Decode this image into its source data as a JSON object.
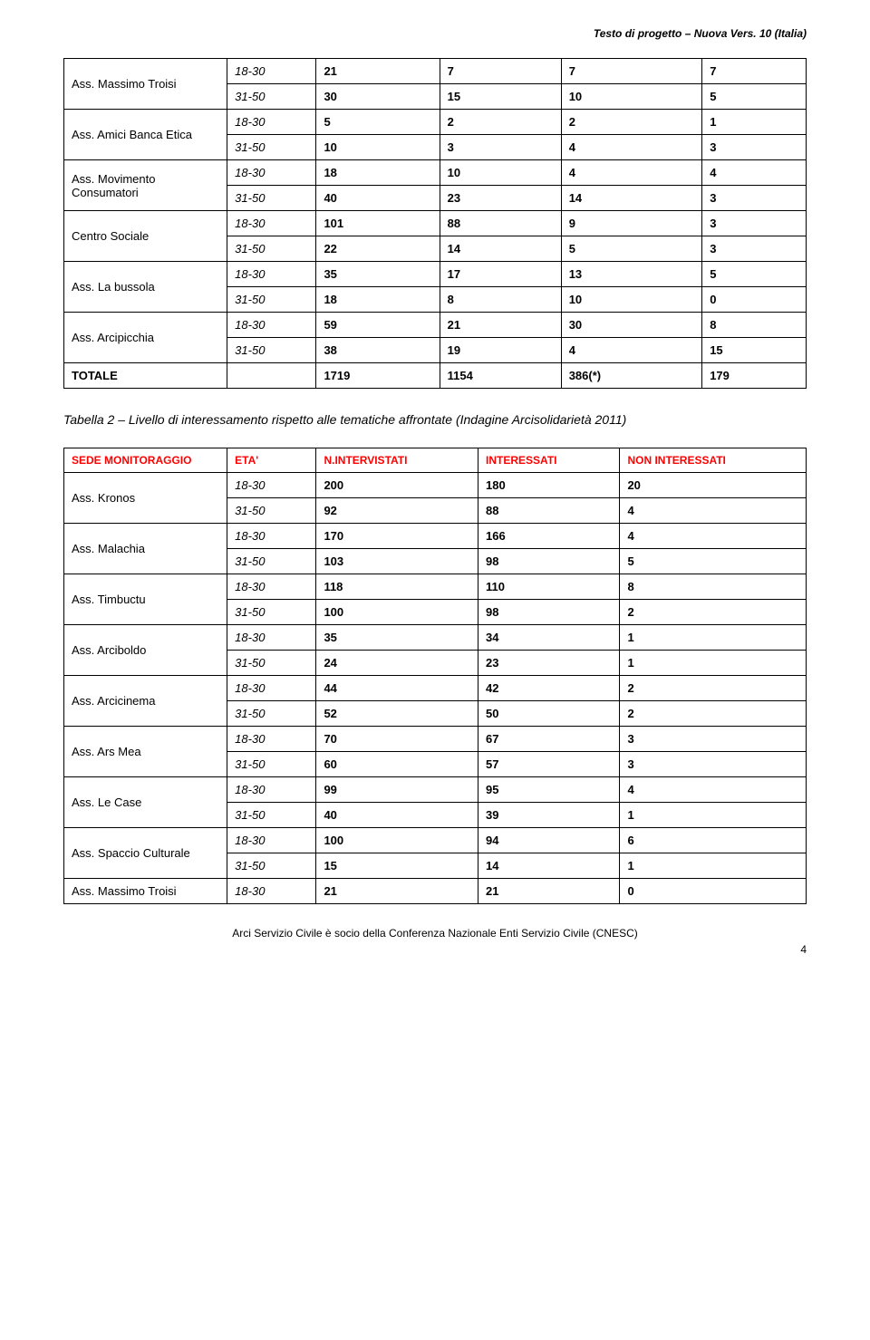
{
  "header": {
    "right": "Testo di progetto – Nuova Vers. 10 (Italia)"
  },
  "table1": {
    "rows": [
      {
        "label": "Ass. Massimo Troisi",
        "r1": [
          "18-30",
          "21",
          "7",
          "7",
          "7"
        ],
        "r2": [
          "31-50",
          "30",
          "15",
          "10",
          "5"
        ]
      },
      {
        "label": "Ass. Amici Banca Etica",
        "r1": [
          "18-30",
          "5",
          "2",
          "2",
          "1"
        ],
        "r2": [
          "31-50",
          "10",
          "3",
          "4",
          "3"
        ]
      },
      {
        "label": "Ass. Movimento Consumatori",
        "r1": [
          "18-30",
          "18",
          "10",
          "4",
          "4"
        ],
        "r2": [
          "31-50",
          "40",
          "23",
          "14",
          "3"
        ]
      },
      {
        "label": "Centro Sociale",
        "r1": [
          "18-30",
          "101",
          "88",
          "9",
          "3"
        ],
        "r2": [
          "31-50",
          "22",
          "14",
          "5",
          "3"
        ]
      },
      {
        "label": "Ass. La bussola",
        "r1": [
          "18-30",
          "35",
          "17",
          "13",
          "5"
        ],
        "r2": [
          "31-50",
          "18",
          "8",
          "10",
          "0"
        ]
      },
      {
        "label": "Ass. Arcipicchia",
        "r1": [
          "18-30",
          "59",
          "21",
          "30",
          "8"
        ],
        "r2": [
          "31-50",
          "38",
          "19",
          "4",
          "15"
        ]
      }
    ],
    "total": {
      "label": "TOTALE",
      "cells": [
        "",
        "1719",
        "1154",
        "386(*)",
        "179"
      ]
    }
  },
  "caption": "Tabella 2 – Livello di interessamento rispetto alle tematiche affrontate (Indagine Arcisolidarietà 2011)",
  "table2": {
    "headers": [
      "SEDE MONITORAGGIO",
      "ETA'",
      "N.INTERVISTATI",
      "INTERESSATI",
      "NON INTERESSATI"
    ],
    "rows": [
      {
        "label": "Ass. Kronos",
        "r1": [
          "18-30",
          "200",
          "180",
          "20"
        ],
        "r2": [
          "31-50",
          "92",
          "88",
          "4"
        ]
      },
      {
        "label": "Ass. Malachia",
        "r1": [
          "18-30",
          "170",
          "166",
          "4"
        ],
        "r2": [
          "31-50",
          "103",
          "98",
          "5"
        ]
      },
      {
        "label": "Ass. Timbuctu",
        "r1": [
          "18-30",
          "118",
          "110",
          "8"
        ],
        "r2": [
          "31-50",
          "100",
          "98",
          "2"
        ]
      },
      {
        "label": "Ass. Arciboldo",
        "r1": [
          "18-30",
          "35",
          "34",
          "1"
        ],
        "r2": [
          "31-50",
          "24",
          "23",
          "1"
        ]
      },
      {
        "label": "Ass. Arcicinema",
        "r1": [
          "18-30",
          "44",
          "42",
          "2"
        ],
        "r2": [
          "31-50",
          "52",
          "50",
          "2"
        ]
      },
      {
        "label": "Ass. Ars Mea",
        "r1": [
          "18-30",
          "70",
          "67",
          "3"
        ],
        "r2": [
          "31-50",
          "60",
          "57",
          "3"
        ]
      },
      {
        "label": "Ass. Le Case",
        "r1": [
          "18-30",
          "99",
          "95",
          "4"
        ],
        "r2": [
          "31-50",
          "40",
          "39",
          "1"
        ]
      },
      {
        "label": "Ass. Spaccio Culturale",
        "r1": [
          "18-30",
          "100",
          "94",
          "6"
        ],
        "r2": [
          "31-50",
          "15",
          "14",
          "1"
        ]
      }
    ],
    "single": {
      "label": "Ass. Massimo Troisi",
      "cells": [
        "18-30",
        "21",
        "21",
        "0"
      ]
    }
  },
  "footer": {
    "text": "Arci Servizio Civile è socio della Conferenza Nazionale Enti Servizio Civile (CNESC)",
    "page": "4"
  },
  "colors": {
    "header_red": "#ff0000",
    "border": "#000000",
    "text": "#000000",
    "background": "#ffffff"
  }
}
